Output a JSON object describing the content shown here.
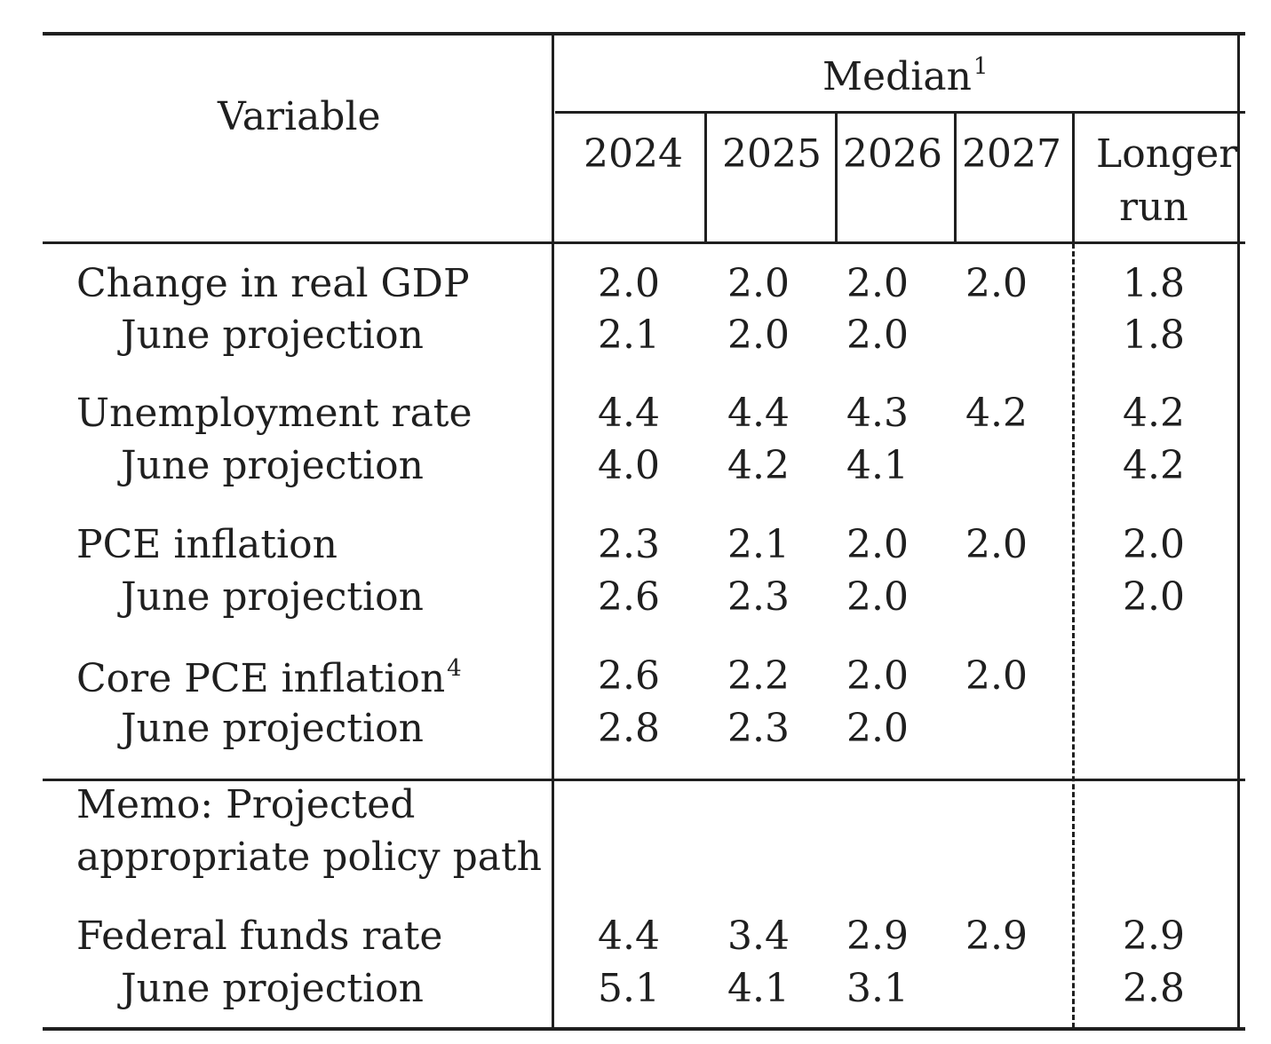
{
  "header": {
    "variable": "Variable",
    "median": "Median",
    "median_note": "1",
    "years": [
      "2024",
      "2025",
      "2026",
      "2027"
    ],
    "longer_run_line1": "Longer",
    "longer_run_line2": "run"
  },
  "rows": [
    {
      "label": "Change in real GDP",
      "note": "",
      "values": [
        "2.0",
        "2.0",
        "2.0",
        "2.0",
        "1.8"
      ]
    },
    {
      "label": "June projection",
      "note": "",
      "values": [
        "2.1",
        "2.0",
        "2.0",
        "",
        "1.8"
      ]
    },
    {
      "label": "Unemployment rate",
      "note": "",
      "values": [
        "4.4",
        "4.4",
        "4.3",
        "4.2",
        "4.2"
      ]
    },
    {
      "label": "June projection",
      "note": "",
      "values": [
        "4.0",
        "4.2",
        "4.1",
        "",
        "4.2"
      ]
    },
    {
      "label": "PCE inflation",
      "note": "",
      "values": [
        "2.3",
        "2.1",
        "2.0",
        "2.0",
        "2.0"
      ]
    },
    {
      "label": "June projection",
      "note": "",
      "values": [
        "2.6",
        "2.3",
        "2.0",
        "",
        "2.0"
      ]
    },
    {
      "label": "Core PCE inflation",
      "note": "4",
      "values": [
        "2.6",
        "2.2",
        "2.0",
        "2.0",
        ""
      ]
    },
    {
      "label": "June projection",
      "note": "",
      "values": [
        "2.8",
        "2.3",
        "2.0",
        "",
        ""
      ]
    }
  ],
  "memo": {
    "line1": "Memo: Projected",
    "line2": "appropriate policy path"
  },
  "memo_rows": [
    {
      "label": "Federal funds rate",
      "values": [
        "4.4",
        "3.4",
        "2.9",
        "2.9",
        "2.9"
      ]
    },
    {
      "label": "June projection",
      "values": [
        "5.1",
        "4.1",
        "3.1",
        "",
        "2.8"
      ]
    }
  ]
}
